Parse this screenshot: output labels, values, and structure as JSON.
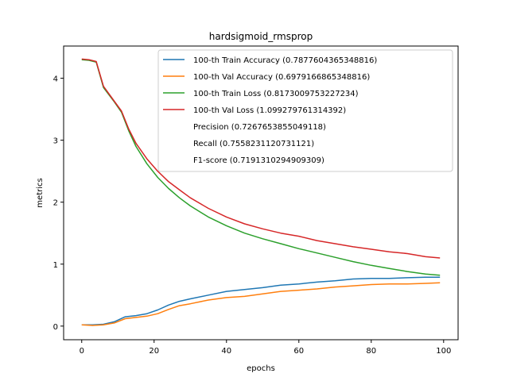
{
  "chart_data": {
    "type": "line",
    "title": "hardsigmoid_rmsprop",
    "xlabel": "epochs",
    "ylabel": "metrics",
    "xlim": [
      -5,
      104
    ],
    "ylim": [
      -0.22,
      4.52
    ],
    "xticks": [
      0,
      20,
      40,
      60,
      80,
      100
    ],
    "yticks": [
      0,
      1,
      2,
      3,
      4
    ],
    "legend_position": "top-right",
    "grid": false,
    "series": [
      {
        "name": "100-th Train Accuracy (0.7877604365348816)",
        "color": "#1f77b4",
        "points": [
          [
            0,
            0.02
          ],
          [
            3,
            0.02
          ],
          [
            6,
            0.03
          ],
          [
            9,
            0.07
          ],
          [
            12,
            0.15
          ],
          [
            15,
            0.17
          ],
          [
            18,
            0.2
          ],
          [
            21,
            0.26
          ],
          [
            24,
            0.34
          ],
          [
            27,
            0.4
          ],
          [
            30,
            0.44
          ],
          [
            35,
            0.5
          ],
          [
            40,
            0.56
          ],
          [
            45,
            0.59
          ],
          [
            50,
            0.62
          ],
          [
            55,
            0.66
          ],
          [
            60,
            0.68
          ],
          [
            65,
            0.71
          ],
          [
            70,
            0.73
          ],
          [
            75,
            0.76
          ],
          [
            80,
            0.77
          ],
          [
            85,
            0.77
          ],
          [
            90,
            0.78
          ],
          [
            95,
            0.79
          ],
          [
            99,
            0.79
          ]
        ]
      },
      {
        "name": "100-th Val Accuracy (0.6979166865348816)",
        "color": "#ff7f0e",
        "points": [
          [
            0,
            0.02
          ],
          [
            3,
            0.01
          ],
          [
            6,
            0.02
          ],
          [
            9,
            0.05
          ],
          [
            12,
            0.12
          ],
          [
            15,
            0.14
          ],
          [
            18,
            0.16
          ],
          [
            21,
            0.2
          ],
          [
            24,
            0.27
          ],
          [
            27,
            0.33
          ],
          [
            30,
            0.36
          ],
          [
            35,
            0.42
          ],
          [
            40,
            0.46
          ],
          [
            45,
            0.48
          ],
          [
            50,
            0.52
          ],
          [
            55,
            0.56
          ],
          [
            60,
            0.58
          ],
          [
            65,
            0.6
          ],
          [
            70,
            0.63
          ],
          [
            75,
            0.65
          ],
          [
            80,
            0.67
          ],
          [
            85,
            0.68
          ],
          [
            90,
            0.68
          ],
          [
            95,
            0.69
          ],
          [
            99,
            0.7
          ]
        ]
      },
      {
        "name": "100-th Train Loss (0.8173009753227234)",
        "color": "#2ca02c",
        "points": [
          [
            0,
            4.3
          ],
          [
            2,
            4.29
          ],
          [
            4,
            4.26
          ],
          [
            6,
            3.85
          ],
          [
            9,
            3.62
          ],
          [
            11,
            3.45
          ],
          [
            13,
            3.15
          ],
          [
            15,
            2.9
          ],
          [
            18,
            2.62
          ],
          [
            21,
            2.4
          ],
          [
            24,
            2.22
          ],
          [
            27,
            2.07
          ],
          [
            30,
            1.94
          ],
          [
            35,
            1.76
          ],
          [
            40,
            1.62
          ],
          [
            45,
            1.5
          ],
          [
            50,
            1.41
          ],
          [
            55,
            1.33
          ],
          [
            60,
            1.25
          ],
          [
            65,
            1.18
          ],
          [
            70,
            1.11
          ],
          [
            75,
            1.04
          ],
          [
            80,
            0.98
          ],
          [
            85,
            0.93
          ],
          [
            90,
            0.88
          ],
          [
            95,
            0.84
          ],
          [
            99,
            0.82
          ]
        ]
      },
      {
        "name": "100-th Val Loss (1.099279761314392)",
        "color": "#d62728",
        "points": [
          [
            0,
            4.31
          ],
          [
            2,
            4.3
          ],
          [
            4,
            4.27
          ],
          [
            6,
            3.87
          ],
          [
            9,
            3.63
          ],
          [
            11,
            3.47
          ],
          [
            13,
            3.18
          ],
          [
            15,
            2.95
          ],
          [
            18,
            2.7
          ],
          [
            21,
            2.5
          ],
          [
            24,
            2.33
          ],
          [
            27,
            2.2
          ],
          [
            30,
            2.07
          ],
          [
            35,
            1.9
          ],
          [
            40,
            1.76
          ],
          [
            45,
            1.65
          ],
          [
            50,
            1.57
          ],
          [
            55,
            1.5
          ],
          [
            60,
            1.45
          ],
          [
            65,
            1.38
          ],
          [
            70,
            1.33
          ],
          [
            75,
            1.28
          ],
          [
            80,
            1.24
          ],
          [
            85,
            1.2
          ],
          [
            90,
            1.17
          ],
          [
            95,
            1.12
          ],
          [
            99,
            1.1
          ]
        ]
      }
    ],
    "legend_extra": [
      "Precision (0.7267653855049118)",
      "Recall (0.7558231120731121)",
      "F1-score (0.7191310294909309)"
    ]
  }
}
